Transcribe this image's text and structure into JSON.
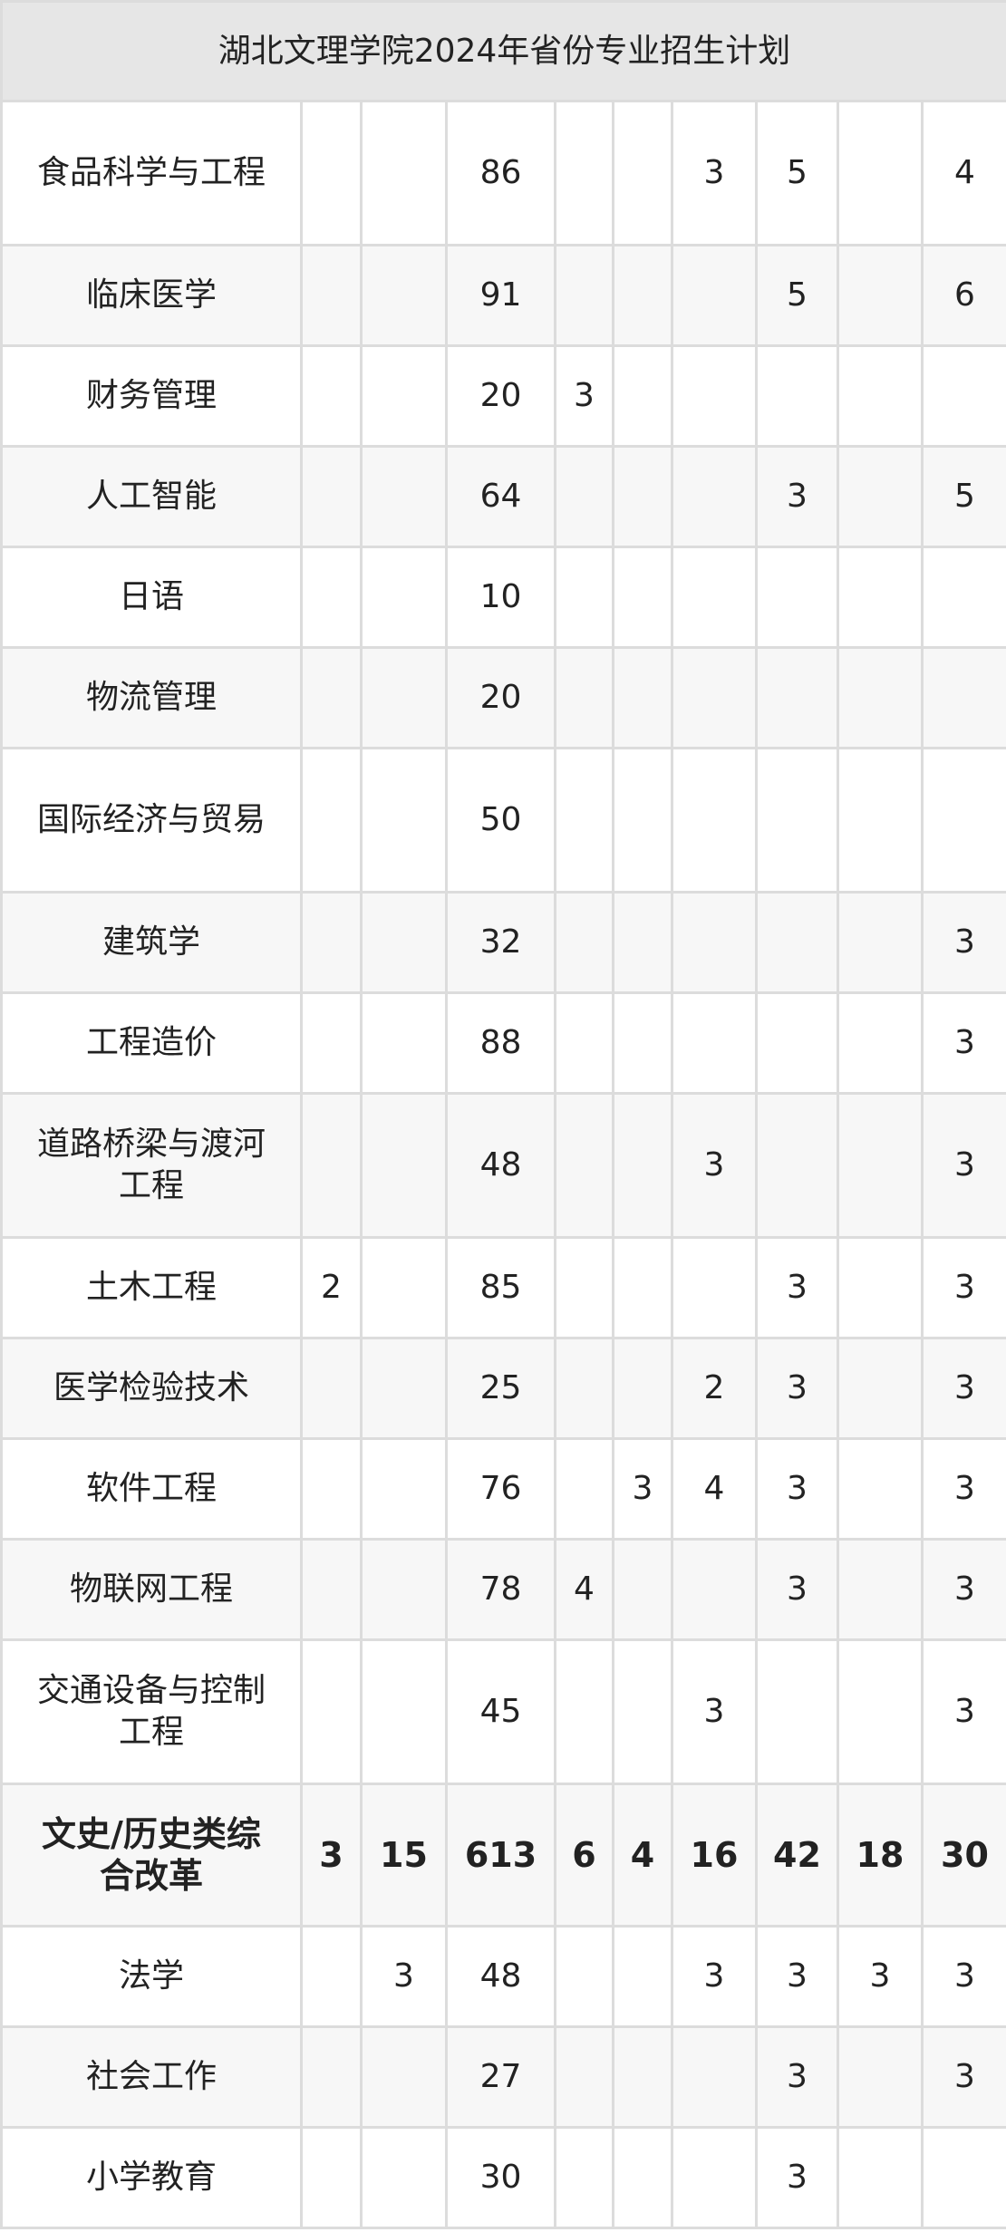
{
  "title": "湖北文理学院2024年省份专业招生计划",
  "rows": [
    {
      "name": "食品科学与工程",
      "v": [
        "",
        "",
        "86",
        "",
        "",
        "3",
        "5",
        "",
        "4"
      ]
    },
    {
      "name": "临床医学",
      "v": [
        "",
        "",
        "91",
        "",
        "",
        "",
        "5",
        "",
        "6"
      ]
    },
    {
      "name": "财务管理",
      "v": [
        "",
        "",
        "20",
        "3",
        "",
        "",
        "",
        "",
        ""
      ]
    },
    {
      "name": "人工智能",
      "v": [
        "",
        "",
        "64",
        "",
        "",
        "",
        "3",
        "",
        "5"
      ]
    },
    {
      "name": "日语",
      "v": [
        "",
        "",
        "10",
        "",
        "",
        "",
        "",
        "",
        ""
      ]
    },
    {
      "name": "物流管理",
      "v": [
        "",
        "",
        "20",
        "",
        "",
        "",
        "",
        "",
        ""
      ]
    },
    {
      "name": "国际经济与贸易",
      "v": [
        "",
        "",
        "50",
        "",
        "",
        "",
        "",
        "",
        ""
      ]
    },
    {
      "name": "建筑学",
      "v": [
        "",
        "",
        "32",
        "",
        "",
        "",
        "",
        "",
        "3"
      ]
    },
    {
      "name": "工程造价",
      "v": [
        "",
        "",
        "88",
        "",
        "",
        "",
        "",
        "",
        "3"
      ]
    },
    {
      "name": "道路桥梁与渡河工程",
      "v": [
        "",
        "",
        "48",
        "",
        "",
        "3",
        "",
        "",
        "3"
      ]
    },
    {
      "name": "土木工程",
      "v": [
        "2",
        "",
        "85",
        "",
        "",
        "",
        "3",
        "",
        "3"
      ]
    },
    {
      "name": "医学检验技术",
      "v": [
        "",
        "",
        "25",
        "",
        "",
        "2",
        "3",
        "",
        "3"
      ]
    },
    {
      "name": "软件工程",
      "v": [
        "",
        "",
        "76",
        "",
        "3",
        "4",
        "3",
        "",
        "3"
      ]
    },
    {
      "name": "物联网工程",
      "v": [
        "",
        "",
        "78",
        "4",
        "",
        "",
        "3",
        "",
        "3"
      ]
    },
    {
      "name": "交通设备与控制工程",
      "v": [
        "",
        "",
        "45",
        "",
        "",
        "3",
        "",
        "",
        "3"
      ]
    },
    {
      "name": "文史/历史类综合改革",
      "bold": true,
      "v": [
        "3",
        "15",
        "613",
        "6",
        "4",
        "16",
        "42",
        "18",
        "30"
      ]
    },
    {
      "name": "法学",
      "v": [
        "",
        "3",
        "48",
        "",
        "",
        "3",
        "3",
        "3",
        "3"
      ]
    },
    {
      "name": "社会工作",
      "v": [
        "",
        "",
        "27",
        "",
        "",
        "",
        "3",
        "",
        "3"
      ]
    },
    {
      "name": "小学教育",
      "v": [
        "",
        "",
        "30",
        "",
        "",
        "",
        "3",
        "",
        ""
      ]
    }
  ]
}
